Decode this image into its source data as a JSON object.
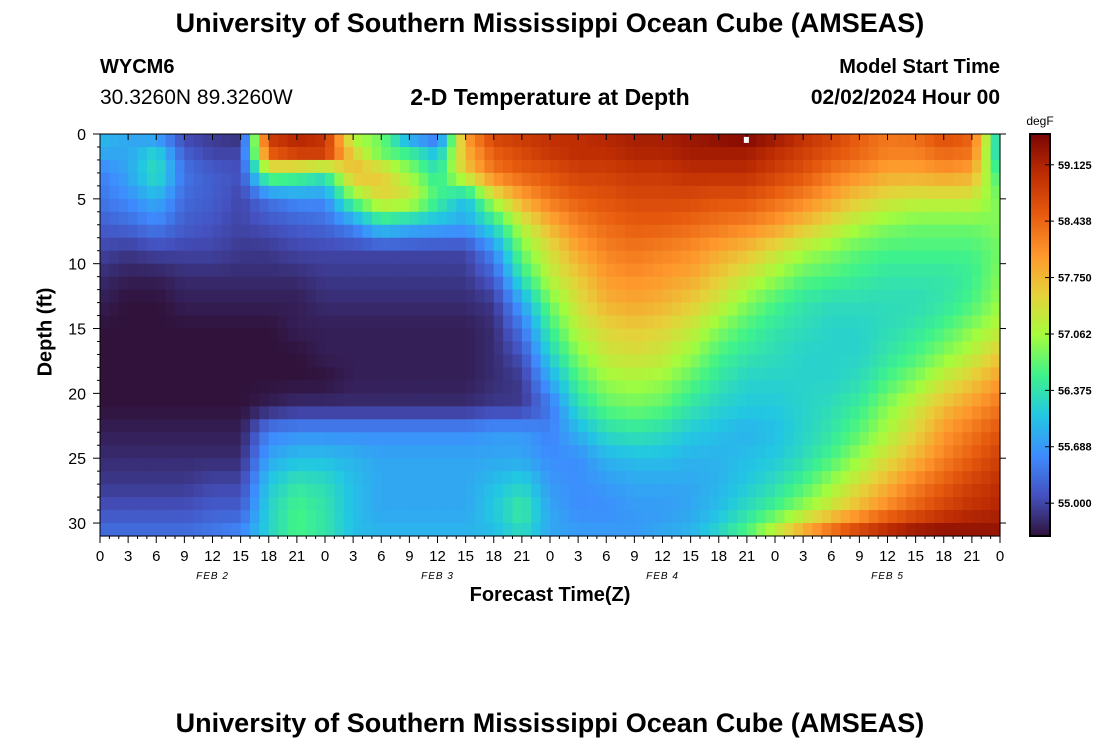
{
  "header": {
    "title": "University of Southern Mississippi Ocean Cube (AMSEAS)",
    "station_id": "WYCM6",
    "coordinates": "30.3260N  89.3260W",
    "plot_title": "2-D Temperature at Depth",
    "model_start_label": "Model Start Time",
    "model_start_value": "02/02/2024 Hour 00"
  },
  "footer": {
    "title": "University of Southern Mississippi Ocean Cube (AMSEAS)"
  },
  "chart_data": {
    "type": "heatmap",
    "title": "2-D Temperature at Depth",
    "xlabel": "Forecast Time(Z)",
    "ylabel": "Depth (ft)",
    "x_unit": "forecast hour",
    "xlim": [
      0,
      96
    ],
    "ylim": [
      31,
      0
    ],
    "x_ticks": [
      0,
      3,
      6,
      9,
      12,
      15,
      18,
      21,
      24,
      27,
      30,
      33,
      36,
      39,
      42,
      45,
      48,
      51,
      54,
      57,
      60,
      63,
      66,
      69,
      72,
      75,
      78,
      81,
      84,
      87,
      90,
      93,
      96
    ],
    "x_tick_labels": [
      "0",
      "3",
      "6",
      "9",
      "12",
      "15",
      "18",
      "21",
      "0",
      "3",
      "6",
      "9",
      "12",
      "15",
      "18",
      "21",
      "0",
      "3",
      "6",
      "9",
      "12",
      "15",
      "18",
      "21",
      "0",
      "3",
      "6",
      "9",
      "12",
      "15",
      "18",
      "21",
      "0"
    ],
    "y_ticks": [
      0,
      5,
      10,
      15,
      20,
      25,
      30
    ],
    "y_tick_labels": [
      "0",
      "5",
      "10",
      "15",
      "20",
      "25",
      "30"
    ],
    "day_labels": [
      {
        "label": "FEB 2",
        "hour": 12
      },
      {
        "label": "FEB 3",
        "hour": 36
      },
      {
        "label": "FEB 4",
        "hour": 60
      },
      {
        "label": "FEB 5",
        "hour": 84
      }
    ],
    "colorbar": {
      "unit": "degF",
      "min": 54.6,
      "max": 59.5,
      "ticks": [
        55.0,
        55.688,
        56.375,
        57.062,
        57.75,
        58.438,
        59.125
      ],
      "tick_labels": [
        "55.000",
        "55.688",
        "56.375",
        "57.062",
        "57.750",
        "58.438",
        "59.125"
      ]
    },
    "marker": {
      "hour": 69,
      "depth": 0.3
    },
    "temperature_grid": {
      "hours": [
        0,
        3,
        6,
        9,
        12,
        15,
        18,
        21,
        24,
        27,
        30,
        33,
        36,
        39,
        42,
        45,
        48,
        51,
        54,
        57,
        60,
        63,
        66,
        69,
        72,
        75,
        78,
        81,
        84,
        87,
        90,
        93,
        96
      ],
      "depths": [
        0,
        1.5,
        3,
        5,
        7,
        9,
        11,
        13,
        15,
        17,
        19,
        21,
        23,
        25,
        27,
        29,
        30.5
      ],
      "values": [
        [
          56.0,
          55.8,
          55.6,
          55.0,
          54.9,
          54.8,
          59.0,
          59.2,
          59.0,
          57.0,
          56.8,
          55.6,
          55.2,
          58.0,
          58.8,
          58.9,
          59.0,
          59.0,
          59.1,
          59.2,
          59.2,
          59.3,
          59.4,
          59.5,
          59.3,
          59.0,
          58.8,
          58.5,
          58.3,
          58.4,
          58.7,
          58.5,
          56.0
        ],
        [
          55.8,
          55.8,
          56.2,
          55.2,
          55.0,
          55.0,
          58.5,
          58.8,
          58.8,
          57.5,
          56.8,
          56.5,
          56.0,
          57.8,
          58.5,
          58.7,
          58.9,
          59.0,
          59.0,
          59.1,
          59.1,
          59.2,
          59.2,
          59.2,
          59.0,
          58.8,
          58.6,
          58.4,
          58.2,
          58.2,
          58.4,
          58.3,
          56.0
        ],
        [
          55.5,
          55.8,
          56.4,
          55.4,
          55.2,
          55.1,
          57.0,
          56.8,
          56.5,
          57.8,
          57.6,
          57.0,
          56.4,
          57.6,
          58.3,
          58.5,
          58.6,
          58.8,
          58.8,
          58.9,
          58.9,
          59.0,
          59.0,
          59.0,
          58.8,
          58.6,
          58.3,
          58.1,
          57.9,
          57.9,
          58.0,
          57.9,
          56.4
        ],
        [
          55.4,
          55.6,
          55.9,
          55.3,
          55.2,
          55.0,
          55.4,
          55.6,
          55.6,
          56.8,
          57.5,
          57.4,
          56.6,
          56.0,
          57.2,
          57.9,
          58.3,
          58.5,
          58.6,
          58.7,
          58.7,
          58.7,
          58.6,
          58.6,
          58.4,
          58.2,
          57.9,
          57.6,
          57.4,
          57.3,
          57.3,
          57.3,
          56.8
        ],
        [
          55.2,
          55.3,
          55.5,
          55.2,
          55.1,
          55.0,
          55.1,
          55.2,
          55.3,
          55.6,
          56.2,
          56.0,
          55.9,
          55.8,
          56.3,
          57.2,
          57.8,
          58.2,
          58.4,
          58.5,
          58.5,
          58.4,
          58.3,
          58.2,
          58.0,
          57.7,
          57.4,
          57.1,
          56.9,
          56.8,
          56.8,
          56.8,
          56.9
        ],
        [
          55.0,
          54.9,
          55.0,
          55.0,
          55.0,
          54.9,
          54.9,
          55.0,
          55.0,
          55.0,
          55.0,
          55.0,
          55.0,
          55.0,
          55.6,
          56.8,
          57.4,
          57.9,
          58.2,
          58.3,
          58.2,
          58.1,
          57.9,
          57.7,
          57.4,
          57.1,
          56.9,
          56.7,
          56.6,
          56.6,
          56.6,
          56.6,
          56.8
        ],
        [
          54.8,
          54.7,
          54.7,
          54.8,
          54.8,
          54.8,
          54.8,
          54.8,
          54.9,
          54.9,
          54.9,
          54.9,
          54.9,
          54.9,
          55.2,
          56.4,
          57.2,
          57.6,
          58.0,
          58.1,
          58.0,
          57.9,
          57.6,
          57.3,
          57.0,
          56.7,
          56.6,
          56.5,
          56.4,
          56.4,
          56.4,
          56.5,
          56.9
        ],
        [
          54.7,
          54.6,
          54.6,
          54.7,
          54.7,
          54.7,
          54.7,
          54.7,
          54.8,
          54.8,
          54.8,
          54.8,
          54.8,
          54.8,
          54.9,
          55.8,
          56.8,
          57.4,
          57.8,
          57.9,
          57.8,
          57.6,
          57.3,
          56.9,
          56.6,
          56.4,
          56.3,
          56.3,
          56.3,
          56.3,
          56.4,
          56.6,
          57.0
        ],
        [
          54.6,
          54.6,
          54.6,
          54.6,
          54.6,
          54.6,
          54.6,
          54.7,
          54.7,
          54.7,
          54.7,
          54.7,
          54.7,
          54.7,
          54.8,
          55.4,
          56.5,
          57.2,
          57.5,
          57.6,
          57.5,
          57.3,
          56.9,
          56.6,
          56.4,
          56.3,
          56.2,
          56.2,
          56.3,
          56.4,
          56.6,
          56.9,
          57.2
        ],
        [
          54.5,
          54.5,
          54.5,
          54.6,
          54.6,
          54.6,
          54.6,
          54.6,
          54.7,
          54.7,
          54.7,
          54.7,
          54.7,
          54.7,
          54.8,
          55.1,
          56.2,
          56.9,
          57.3,
          57.4,
          57.3,
          57.0,
          56.6,
          56.4,
          56.3,
          56.2,
          56.2,
          56.2,
          56.4,
          56.6,
          56.9,
          57.2,
          57.6
        ],
        [
          54.5,
          54.5,
          54.5,
          54.6,
          54.6,
          54.6,
          54.6,
          54.6,
          54.6,
          54.7,
          54.7,
          54.7,
          54.7,
          54.7,
          54.8,
          54.9,
          55.8,
          56.6,
          57.0,
          57.1,
          57.0,
          56.7,
          56.4,
          56.2,
          56.2,
          56.2,
          56.2,
          56.3,
          56.6,
          56.9,
          57.3,
          57.6,
          58.0
        ],
        [
          54.6,
          54.6,
          54.6,
          54.6,
          54.6,
          54.6,
          54.7,
          54.8,
          54.8,
          54.8,
          54.8,
          54.8,
          54.8,
          54.8,
          54.9,
          54.9,
          55.4,
          56.3,
          56.7,
          56.8,
          56.7,
          56.4,
          56.2,
          56.1,
          56.1,
          56.2,
          56.3,
          56.5,
          56.9,
          57.3,
          57.7,
          58.0,
          58.3
        ],
        [
          54.7,
          54.7,
          54.7,
          54.7,
          54.7,
          54.7,
          55.5,
          55.6,
          55.6,
          55.6,
          55.6,
          55.6,
          55.6,
          55.6,
          55.7,
          55.7,
          55.5,
          55.9,
          56.3,
          56.4,
          56.3,
          56.1,
          56.0,
          55.9,
          56.0,
          56.2,
          56.4,
          56.7,
          57.1,
          57.5,
          58.0,
          58.3,
          58.6
        ],
        [
          54.8,
          54.8,
          54.8,
          54.8,
          54.8,
          54.8,
          55.8,
          56.0,
          56.0,
          55.9,
          55.8,
          55.8,
          55.8,
          55.8,
          55.8,
          55.8,
          55.6,
          55.6,
          55.9,
          56.0,
          56.0,
          55.9,
          55.9,
          56.0,
          56.1,
          56.3,
          56.6,
          57.0,
          57.4,
          57.8,
          58.2,
          58.5,
          58.8
        ],
        [
          54.9,
          54.9,
          54.9,
          54.9,
          55.0,
          55.0,
          56.1,
          56.4,
          56.3,
          56.0,
          55.8,
          55.8,
          55.8,
          55.8,
          56.0,
          56.2,
          55.7,
          55.6,
          55.7,
          55.8,
          55.8,
          55.8,
          55.9,
          56.1,
          56.3,
          56.6,
          57.0,
          57.4,
          57.8,
          58.2,
          58.5,
          58.8,
          59.0
        ],
        [
          55.1,
          55.1,
          55.1,
          55.1,
          55.2,
          55.2,
          56.2,
          56.6,
          56.4,
          56.0,
          55.8,
          55.8,
          55.8,
          55.8,
          56.1,
          56.5,
          55.8,
          55.6,
          55.6,
          55.7,
          55.7,
          55.8,
          56.0,
          56.3,
          56.6,
          57.0,
          57.4,
          57.8,
          58.2,
          58.5,
          58.8,
          59.0,
          59.1
        ],
        [
          55.3,
          55.3,
          55.3,
          55.3,
          55.4,
          55.5,
          56.2,
          56.6,
          56.4,
          56.0,
          55.9,
          55.9,
          55.9,
          55.9,
          56.0,
          56.3,
          55.8,
          55.7,
          55.7,
          55.7,
          55.8,
          55.9,
          56.2,
          56.6,
          57.2,
          57.8,
          58.3,
          58.7,
          59.0,
          59.2,
          59.3,
          59.3,
          59.3
        ]
      ]
    }
  }
}
